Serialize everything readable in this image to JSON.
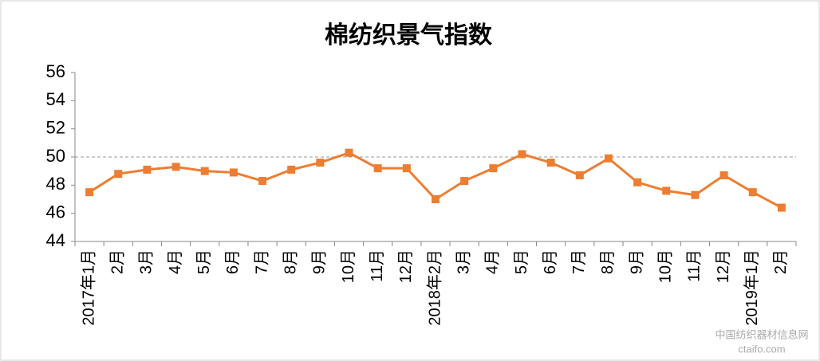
{
  "chart_data": {
    "type": "line",
    "title": "棉纺织景气指数",
    "categories": [
      "2017年1月",
      "2月",
      "3月",
      "4月",
      "5月",
      "6月",
      "7月",
      "8月",
      "9月",
      "10月",
      "11月",
      "12月",
      "2018年2月",
      "3月",
      "4月",
      "5月",
      "6月",
      "7月",
      "8月",
      "9月",
      "10月",
      "11月",
      "12月",
      "2019年1月",
      "2月"
    ],
    "series": [
      {
        "name": "棉纺织景气指数",
        "color": "#ed7d31",
        "values": [
          47.5,
          48.8,
          49.1,
          49.3,
          49.0,
          48.9,
          48.3,
          49.1,
          49.6,
          50.3,
          49.2,
          49.2,
          47.0,
          48.3,
          49.2,
          50.2,
          49.6,
          48.7,
          49.9,
          48.2,
          47.6,
          47.3,
          48.7,
          47.5,
          46.4
        ]
      }
    ],
    "ylim": [
      44,
      56
    ],
    "yticks": [
      44,
      46,
      48,
      50,
      52,
      54,
      56
    ],
    "reference_line": 50,
    "watermark": [
      "中国纺织器材信息网",
      "ctaifo.com"
    ]
  }
}
